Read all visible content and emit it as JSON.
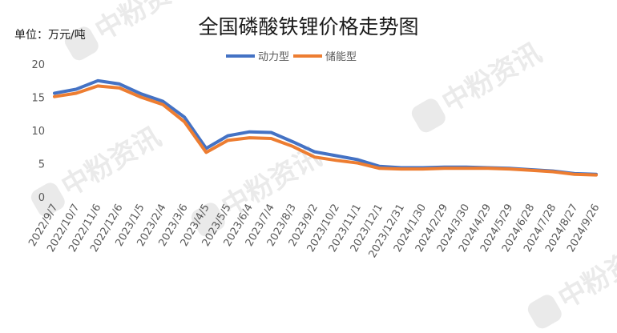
{
  "watermark_text": "中粉资讯",
  "chart_data": {
    "type": "line",
    "title": "全国磷酸铁锂价格走势图",
    "unit_label": "单位：万元/吨",
    "ylim": [
      0,
      20
    ],
    "yticks": [
      0,
      5,
      10,
      15,
      20
    ],
    "grid": false,
    "legend_position": "top",
    "xticks": [
      "2022/9/7",
      "2022/10/7",
      "2022/11/6",
      "2022/12/6",
      "2023/1/5",
      "2023/2/4",
      "2023/3/6",
      "2023/4/5",
      "2023/5/5",
      "2023/6/4",
      "2023/7/4",
      "2023/8/3",
      "2023/9/2",
      "2023/10/2",
      "2023/11/1",
      "2023/12/1",
      "2023/12/31",
      "2024/1/30",
      "2024/2/29",
      "2024/3/30",
      "2024/4/29",
      "2024/5/29",
      "2024/6/28",
      "2024/7/28",
      "2024/8/27",
      "2024/9/26"
    ],
    "x": [
      "2022/9/7",
      "2022/10/7",
      "2022/11/6",
      "2022/12/6",
      "2023/1/5",
      "2023/2/4",
      "2023/3/6",
      "2023/4/5",
      "2023/5/5",
      "2023/6/4",
      "2023/7/4",
      "2023/8/3",
      "2023/9/2",
      "2023/10/2",
      "2023/11/1",
      "2023/12/1",
      "2023/12/31",
      "2024/1/30",
      "2024/2/29",
      "2024/3/30",
      "2024/4/29",
      "2024/5/29",
      "2024/6/28",
      "2024/7/28",
      "2024/8/27",
      "2024/9/26"
    ],
    "series": [
      {
        "name": "动力型",
        "color": "#4472C4",
        "values": [
          15.6,
          16.2,
          17.5,
          17.0,
          15.5,
          14.4,
          12.0,
          7.3,
          9.2,
          9.8,
          9.7,
          8.3,
          6.8,
          6.2,
          5.6,
          4.6,
          4.4,
          4.4,
          4.5,
          4.5,
          4.4,
          4.3,
          4.1,
          3.9,
          3.5,
          3.4
        ]
      },
      {
        "name": "储能型",
        "color": "#ED7D31",
        "values": [
          15.1,
          15.6,
          16.7,
          16.4,
          15.0,
          13.9,
          11.3,
          6.7,
          8.5,
          8.9,
          8.8,
          7.6,
          6.0,
          5.5,
          5.1,
          4.3,
          4.2,
          4.2,
          4.3,
          4.3,
          4.3,
          4.2,
          4.0,
          3.8,
          3.4,
          3.3
        ]
      }
    ]
  }
}
